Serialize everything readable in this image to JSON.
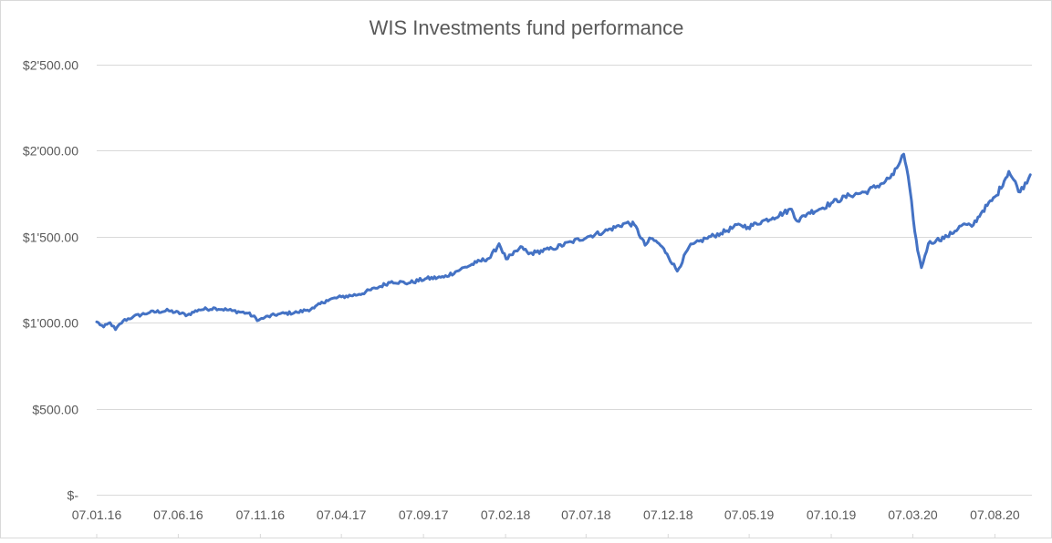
{
  "chart_data": {
    "type": "line",
    "title": "WIS Investments fund performance",
    "xlabel": "",
    "ylabel": "",
    "ylim": [
      0,
      2500
    ],
    "y_ticks": [
      0,
      500,
      1000,
      1500,
      2000,
      2500
    ],
    "y_tick_labels": [
      "$-",
      "$500.00",
      "$1'000.00",
      "$1'500.00",
      "$2'000.00",
      "$2'500.00"
    ],
    "x_ticks": [
      "2016-01-07",
      "2016-06-07",
      "2016-11-07",
      "2017-04-07",
      "2017-09-07",
      "2018-02-07",
      "2018-07-07",
      "2018-12-07",
      "2019-05-07",
      "2019-10-07",
      "2020-03-07",
      "2020-08-07"
    ],
    "x_tick_labels": [
      "07.01.16",
      "07.06.16",
      "07.11.16",
      "07.04.17",
      "07.09.17",
      "07.02.18",
      "07.07.18",
      "07.12.18",
      "07.05.19",
      "07.10.19",
      "07.03.20",
      "07.08.20"
    ],
    "x_range": [
      "2016-01-07",
      "2020-10-15"
    ],
    "grid": "horizontal",
    "line_color": "#4472c4",
    "grid_color": "#d9d9d9",
    "series": [
      {
        "x": [
          "2016-01-07",
          "2016-01-20",
          "2016-02-01",
          "2016-02-11",
          "2016-02-25",
          "2016-03-15",
          "2016-04-15",
          "2016-05-20",
          "2016-06-24",
          "2016-07-15",
          "2016-08-15",
          "2016-09-15",
          "2016-10-15",
          "2016-11-04",
          "2016-11-15",
          "2016-12-10",
          "2017-01-15",
          "2017-02-15",
          "2017-03-10",
          "2017-04-07",
          "2017-05-10",
          "2017-06-10",
          "2017-07-10",
          "2017-08-10",
          "2017-09-10",
          "2017-10-15",
          "2017-11-15",
          "2017-12-15",
          "2018-01-10",
          "2018-01-26",
          "2018-02-08",
          "2018-02-20",
          "2018-03-10",
          "2018-03-22",
          "2018-04-05",
          "2018-05-05",
          "2018-06-10",
          "2018-07-10",
          "2018-08-10",
          "2018-09-20",
          "2018-10-05",
          "2018-10-25",
          "2018-11-05",
          "2018-11-20",
          "2018-12-05",
          "2018-12-24",
          "2019-01-15",
          "2019-02-15",
          "2019-03-15",
          "2019-04-20",
          "2019-05-05",
          "2019-05-31",
          "2019-06-20",
          "2019-07-25",
          "2019-08-05",
          "2019-08-26",
          "2019-09-15",
          "2019-10-10",
          "2019-11-10",
          "2019-12-10",
          "2020-01-10",
          "2020-01-31",
          "2020-02-19",
          "2020-03-01",
          "2020-03-08",
          "2020-03-16",
          "2020-03-23",
          "2020-04-05",
          "2020-04-20",
          "2020-05-10",
          "2020-06-08",
          "2020-06-25",
          "2020-07-15",
          "2020-08-10",
          "2020-09-02",
          "2020-09-23",
          "2020-10-12"
        ],
        "y": [
          1005,
          975,
          1000,
          960,
          1010,
          1035,
          1060,
          1070,
          1045,
          1075,
          1085,
          1070,
          1055,
          1015,
          1030,
          1050,
          1060,
          1085,
          1130,
          1150,
          1165,
          1200,
          1240,
          1230,
          1255,
          1265,
          1310,
          1350,
          1380,
          1460,
          1370,
          1395,
          1440,
          1400,
          1410,
          1430,
          1470,
          1500,
          1530,
          1580,
          1570,
          1450,
          1490,
          1460,
          1400,
          1300,
          1440,
          1490,
          1520,
          1570,
          1555,
          1590,
          1610,
          1660,
          1590,
          1640,
          1660,
          1700,
          1740,
          1760,
          1810,
          1860,
          1980,
          1790,
          1600,
          1420,
          1320,
          1460,
          1480,
          1500,
          1570,
          1560,
          1650,
          1740,
          1880,
          1760,
          1860
        ]
      }
    ]
  }
}
